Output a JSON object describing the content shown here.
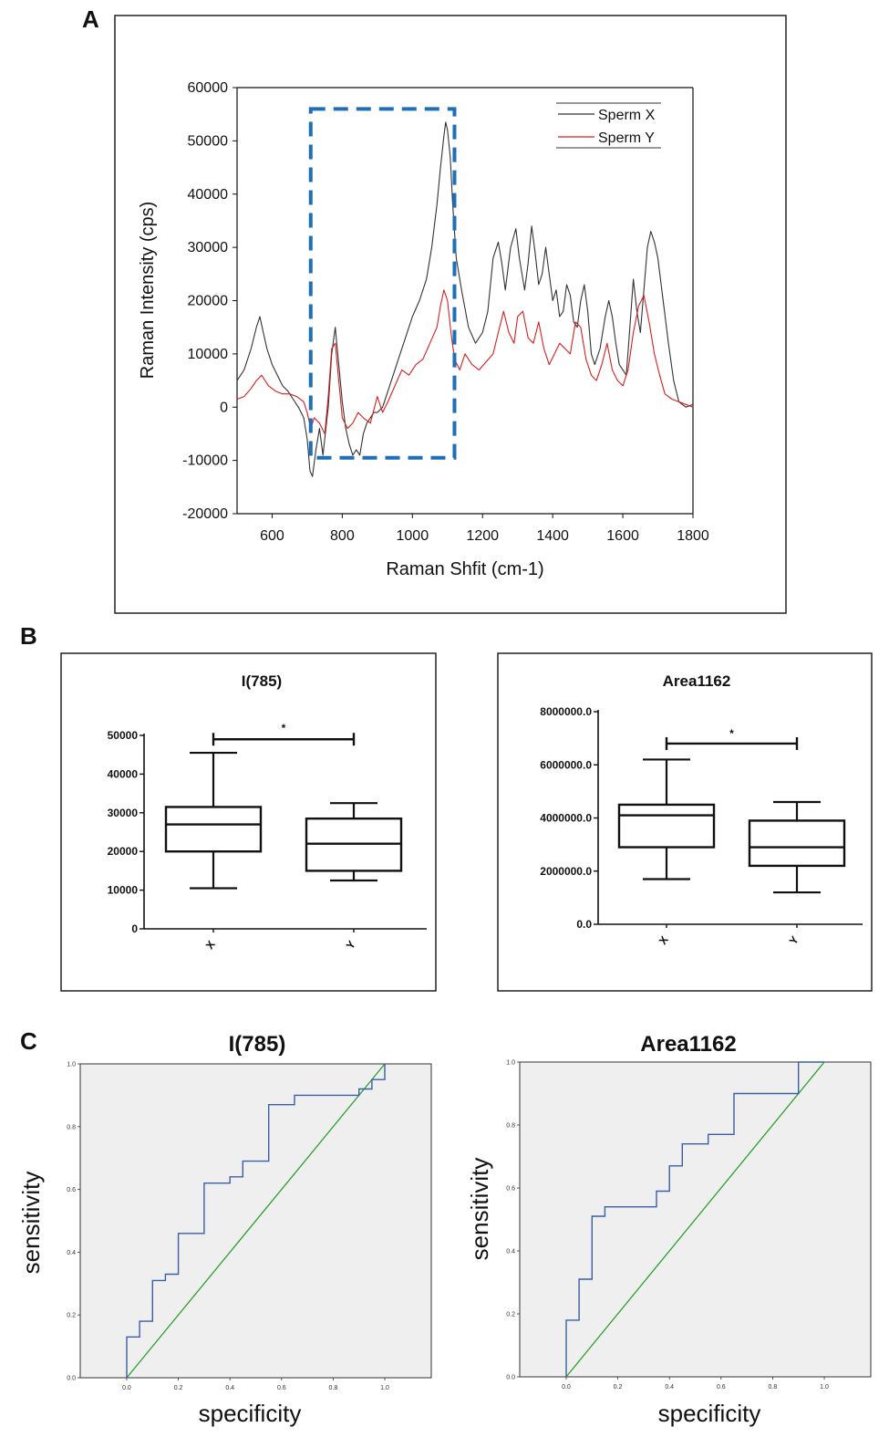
{
  "panels": {
    "a": "A",
    "b": "B",
    "c": "C"
  },
  "colors": {
    "sperm_x": "#333333",
    "sperm_y": "#d62020",
    "highlight": "#1f6fb8",
    "roc_curve": "#3a5ea8",
    "roc_ref": "#2aa02a",
    "roc_bg": "#efefef"
  },
  "chart_data": [
    {
      "id": "spectrum",
      "type": "line",
      "xlabel": "Raman Shfit (cm-1)",
      "ylabel": "Raman Intensity (cps)",
      "xlim": [
        500,
        1800
      ],
      "ylim": [
        -20000,
        60000
      ],
      "xticks": [
        600,
        800,
        1000,
        1200,
        1400,
        1600,
        1800
      ],
      "yticks": [
        -20000,
        -10000,
        0,
        10000,
        20000,
        30000,
        40000,
        50000,
        60000
      ],
      "xtick_labels": [
        "600",
        "800",
        "1000",
        "1200",
        "1400",
        "1600",
        "1800"
      ],
      "ytick_labels": [
        "-20000",
        "-10000",
        "0",
        "10000",
        "20000",
        "30000",
        "40000",
        "50000",
        "60000"
      ],
      "highlight_box": {
        "x": [
          710,
          1120
        ],
        "y": [
          -9500,
          56000
        ]
      },
      "series": [
        {
          "name": "Sperm X",
          "x": [
            500,
            520,
            540,
            555,
            565,
            575,
            585,
            600,
            615,
            630,
            645,
            660,
            675,
            690,
            700,
            708,
            715,
            725,
            735,
            745,
            760,
            770,
            780,
            790,
            800,
            810,
            820,
            830,
            840,
            850,
            860,
            870,
            880,
            890,
            900,
            915,
            930,
            945,
            960,
            980,
            1000,
            1020,
            1040,
            1055,
            1070,
            1080,
            1090,
            1095,
            1100,
            1108,
            1115,
            1125,
            1140,
            1160,
            1180,
            1200,
            1215,
            1230,
            1245,
            1255,
            1265,
            1280,
            1295,
            1305,
            1320,
            1330,
            1340,
            1350,
            1360,
            1370,
            1380,
            1390,
            1400,
            1410,
            1420,
            1430,
            1440,
            1450,
            1460,
            1470,
            1480,
            1490,
            1500,
            1510,
            1520,
            1535,
            1550,
            1560,
            1570,
            1580,
            1590,
            1600,
            1610,
            1620,
            1630,
            1640,
            1650,
            1660,
            1670,
            1680,
            1690,
            1700,
            1715,
            1730,
            1745,
            1760,
            1780,
            1800
          ],
          "y": [
            5000,
            7000,
            11000,
            15000,
            17000,
            14000,
            11000,
            8000,
            6000,
            4000,
            3000,
            1500,
            0,
            -2000,
            -6000,
            -12000,
            -13000,
            -8000,
            -4000,
            -9000,
            0,
            10000,
            15000,
            8000,
            1000,
            -4000,
            -7000,
            -9000,
            -8000,
            -9000,
            -5000,
            -3000,
            -2000,
            -1000,
            -1000,
            0,
            3000,
            6000,
            9000,
            13000,
            17000,
            20000,
            24000,
            30000,
            38000,
            45000,
            51000,
            53500,
            52000,
            47000,
            38000,
            28000,
            22000,
            15000,
            12000,
            14000,
            18000,
            28000,
            31000,
            27000,
            22000,
            30000,
            33500,
            28000,
            22000,
            27000,
            34000,
            29000,
            23000,
            25000,
            30000,
            25000,
            20000,
            22000,
            17000,
            18000,
            23000,
            21000,
            16000,
            15000,
            20000,
            23000,
            18000,
            10000,
            8000,
            11000,
            17000,
            20000,
            17000,
            12000,
            8000,
            7000,
            6000,
            15000,
            24000,
            18000,
            14000,
            22000,
            30000,
            33000,
            31000,
            28000,
            20000,
            12000,
            5000,
            1000,
            0,
            500
          ]
        },
        {
          "name": "Sperm Y",
          "x": [
            500,
            520,
            540,
            555,
            570,
            590,
            610,
            630,
            650,
            670,
            690,
            700,
            710,
            720,
            735,
            750,
            760,
            770,
            780,
            790,
            800,
            815,
            830,
            845,
            860,
            880,
            900,
            915,
            930,
            950,
            970,
            990,
            1010,
            1030,
            1050,
            1070,
            1080,
            1090,
            1100,
            1110,
            1120,
            1135,
            1150,
            1170,
            1190,
            1210,
            1230,
            1245,
            1260,
            1275,
            1290,
            1300,
            1315,
            1330,
            1345,
            1360,
            1375,
            1390,
            1405,
            1420,
            1435,
            1450,
            1465,
            1480,
            1495,
            1510,
            1525,
            1540,
            1555,
            1570,
            1585,
            1600,
            1615,
            1630,
            1645,
            1660,
            1675,
            1690,
            1705,
            1720,
            1740,
            1760,
            1780,
            1800
          ],
          "y": [
            1500,
            2000,
            3500,
            5000,
            6000,
            4000,
            3000,
            2500,
            2500,
            2000,
            1000,
            -1000,
            -4000,
            -2000,
            -3000,
            -5000,
            2000,
            11000,
            12000,
            5000,
            -2000,
            -4000,
            -3000,
            -1000,
            -2000,
            -3000,
            2000,
            -1000,
            1000,
            4000,
            7000,
            6000,
            8000,
            9000,
            12000,
            15000,
            19000,
            22000,
            20000,
            14000,
            9000,
            7000,
            10000,
            8000,
            7000,
            8500,
            10000,
            14000,
            18000,
            14000,
            12000,
            17000,
            18000,
            13000,
            12000,
            16000,
            11000,
            8000,
            10000,
            12000,
            11000,
            10000,
            16000,
            15000,
            9000,
            6000,
            5000,
            8000,
            12000,
            7000,
            5000,
            4000,
            7000,
            14000,
            19000,
            21000,
            16000,
            10000,
            6000,
            2500,
            1500,
            1000,
            500,
            0
          ]
        }
      ]
    },
    {
      "id": "box_i785",
      "type": "box",
      "title": "I(785)",
      "categories": [
        "X",
        "Y"
      ],
      "ylim": [
        0,
        50000
      ],
      "yticks": [
        0,
        10000,
        20000,
        30000,
        40000,
        50000
      ],
      "ytick_labels": [
        "0",
        "10000",
        "20000",
        "30000",
        "40000",
        "50000"
      ],
      "boxes": [
        {
          "min": 10500,
          "q1": 20000,
          "median": 27000,
          "q3": 31500,
          "max": 45500
        },
        {
          "min": 12500,
          "q1": 15000,
          "median": 22000,
          "q3": 28500,
          "max": 32500
        }
      ],
      "significance": "*",
      "sig_y": 49000
    },
    {
      "id": "box_area1162",
      "type": "box",
      "title": "Area1162",
      "categories": [
        "X",
        "Y"
      ],
      "ylim": [
        0,
        8000000
      ],
      "yticks": [
        0,
        2000000,
        4000000,
        6000000,
        8000000
      ],
      "ytick_labels": [
        "0.0",
        "2000000.0",
        "4000000.0",
        "6000000.0",
        "8000000.0"
      ],
      "boxes": [
        {
          "min": 1700000,
          "q1": 2900000,
          "median": 4100000,
          "q3": 4500000,
          "max": 6200000
        },
        {
          "min": 1200000,
          "q1": 2200000,
          "median": 2900000,
          "q3": 3900000,
          "max": 4600000
        }
      ],
      "significance": "*",
      "sig_y": 6800000
    },
    {
      "id": "roc_i785",
      "type": "line",
      "title": "I(785)",
      "xlabel": "specificity",
      "ylabel": "sensitivity",
      "xlim": [
        -0.18,
        1.18
      ],
      "ylim": [
        0,
        1
      ],
      "ticks": [
        "0.0",
        "0.2",
        "0.4",
        "0.6",
        "0.8",
        "1.0"
      ],
      "curve": [
        [
          0,
          0
        ],
        [
          0,
          0.13
        ],
        [
          0.05,
          0.13
        ],
        [
          0.05,
          0.18
        ],
        [
          0.1,
          0.18
        ],
        [
          0.1,
          0.31
        ],
        [
          0.15,
          0.31
        ],
        [
          0.15,
          0.33
        ],
        [
          0.2,
          0.33
        ],
        [
          0.2,
          0.46
        ],
        [
          0.3,
          0.46
        ],
        [
          0.3,
          0.62
        ],
        [
          0.4,
          0.62
        ],
        [
          0.4,
          0.64
        ],
        [
          0.45,
          0.64
        ],
        [
          0.45,
          0.69
        ],
        [
          0.55,
          0.69
        ],
        [
          0.55,
          0.87
        ],
        [
          0.65,
          0.87
        ],
        [
          0.65,
          0.9
        ],
        [
          0.9,
          0.9
        ],
        [
          0.9,
          0.92
        ],
        [
          0.95,
          0.92
        ],
        [
          0.95,
          0.95
        ],
        [
          1,
          0.95
        ],
        [
          1,
          1
        ]
      ]
    },
    {
      "id": "roc_area1162",
      "type": "line",
      "title": "Area1162",
      "xlabel": "specificity",
      "ylabel": "sensitivity",
      "xlim": [
        -0.18,
        1.18
      ],
      "ylim": [
        0,
        1
      ],
      "ticks": [
        "0.0",
        "0.2",
        "0.4",
        "0.6",
        "0.8",
        "1.0"
      ],
      "curve": [
        [
          0,
          0
        ],
        [
          0,
          0.18
        ],
        [
          0.05,
          0.18
        ],
        [
          0.05,
          0.31
        ],
        [
          0.1,
          0.31
        ],
        [
          0.1,
          0.51
        ],
        [
          0.15,
          0.51
        ],
        [
          0.15,
          0.54
        ],
        [
          0.35,
          0.54
        ],
        [
          0.35,
          0.59
        ],
        [
          0.4,
          0.59
        ],
        [
          0.4,
          0.67
        ],
        [
          0.45,
          0.67
        ],
        [
          0.45,
          0.74
        ],
        [
          0.55,
          0.74
        ],
        [
          0.55,
          0.77
        ],
        [
          0.65,
          0.77
        ],
        [
          0.65,
          0.9
        ],
        [
          0.9,
          0.9
        ],
        [
          0.9,
          1
        ],
        [
          1,
          1
        ]
      ]
    }
  ]
}
